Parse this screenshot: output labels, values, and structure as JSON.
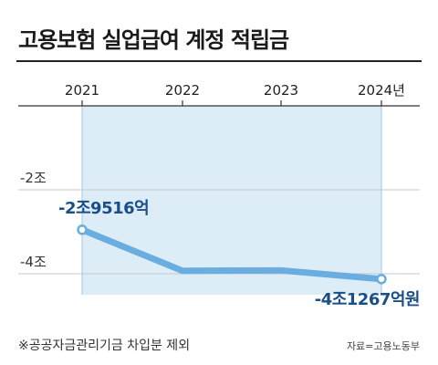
{
  "title": "고용보험 실업급여 계정 적립금",
  "footnote": "※공공자금관리기금 차입분 제외",
  "source": "자료=고용노동부",
  "chart_data": {
    "type": "line",
    "x": [
      "2021",
      "2022",
      "2023",
      "2024년"
    ],
    "values": [
      -2.9516,
      -3.93,
      -3.92,
      -4.1267
    ],
    "ylim": [
      -4.5,
      0
    ],
    "yticks": [
      -2,
      -4
    ],
    "ytick_labels": [
      "-2조",
      "-4조"
    ],
    "data_labels": [
      {
        "index": 0,
        "text": "-2조9516억"
      },
      {
        "index": 3,
        "text": "-4조1267억원"
      }
    ],
    "highlight_range": [
      "2021",
      "2024년"
    ],
    "grid": true,
    "colors": {
      "line": "#6aaee0",
      "band": "#dcedf8",
      "band_edge": "#9cc9ea",
      "label": "#1b4f8a",
      "marker_fill": "#ffffff"
    }
  }
}
